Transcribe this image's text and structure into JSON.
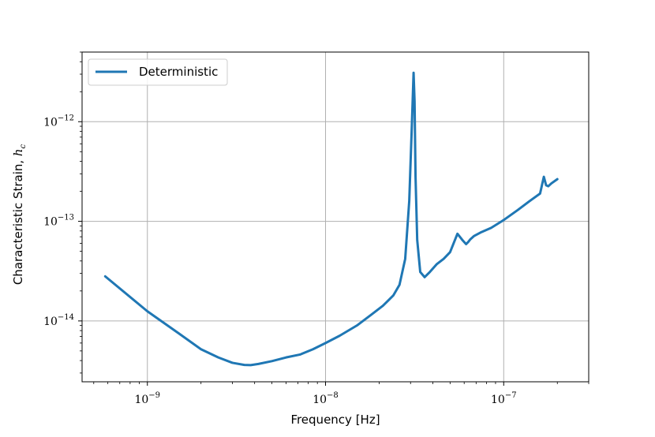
{
  "chart_data": {
    "type": "line",
    "title": "",
    "xlabel": "Frequency [Hz]",
    "ylabel_text": "Characteristic Strain, ",
    "ylabel_symbol": "h",
    "ylabel_subscript": "c",
    "x_scale": "log",
    "y_scale": "log",
    "xlim": [
      4.3e-10,
      3e-07
    ],
    "ylim": [
      2.45e-15,
      5e-12
    ],
    "grid": true,
    "legend_position": "top-left",
    "x_ticks": [
      {
        "base": "10",
        "exp": "−9",
        "value": 1e-09
      },
      {
        "base": "10",
        "exp": "−8",
        "value": 1e-08
      },
      {
        "base": "10",
        "exp": "−7",
        "value": 1e-07
      }
    ],
    "y_ticks": [
      {
        "base": "10",
        "exp": "−14",
        "value": 1e-14
      },
      {
        "base": "10",
        "exp": "−13",
        "value": 1e-13
      },
      {
        "base": "10",
        "exp": "−12",
        "value": 1e-12
      }
    ],
    "series": [
      {
        "name": "Deterministic",
        "color": "#1f77b4",
        "x": [
          5.8e-10,
          1e-09,
          1.5e-09,
          2e-09,
          2.5e-09,
          3e-09,
          3.5e-09,
          3.8e-09,
          4.2e-09,
          5e-09,
          6e-09,
          7.2e-09,
          8.5e-09,
          1e-08,
          1.2e-08,
          1.5e-08,
          1.8e-08,
          2.1e-08,
          2.4e-08,
          2.6e-08,
          2.8e-08,
          2.95e-08,
          3.05e-08,
          3.12e-08,
          3.16e-08,
          3.2e-08,
          3.27e-08,
          3.4e-08,
          3.6e-08,
          3.85e-08,
          4.2e-08,
          4.6e-08,
          5e-08,
          5.5e-08,
          5.9e-08,
          6.15e-08,
          6.32e-08,
          6.5e-08,
          6.8e-08,
          7.5e-08,
          8.5e-08,
          1e-07,
          1.2e-07,
          1.4e-07,
          1.6e-07,
          1.68e-07,
          1.73e-07,
          1.78e-07,
          1.85e-07,
          2e-07
        ],
        "y": [
          2.8e-14,
          1.25e-14,
          7.5e-15,
          5.2e-15,
          4.3e-15,
          3.8e-15,
          3.62e-15,
          3.6e-15,
          3.7e-15,
          3.95e-15,
          4.3e-15,
          4.6e-15,
          5.2e-15,
          6e-15,
          7.1e-15,
          9e-15,
          1.15e-14,
          1.42e-14,
          1.8e-14,
          2.3e-14,
          4.2e-14,
          1.6e-13,
          9e-13,
          3.1e-12,
          1.6e-12,
          2.8e-13,
          6.5e-14,
          3.1e-14,
          2.75e-14,
          3.1e-14,
          3.7e-14,
          4.2e-14,
          4.9e-14,
          7.5e-14,
          6.4e-14,
          5.9e-14,
          6.2e-14,
          6.6e-14,
          7.1e-14,
          7.8e-14,
          8.6e-14,
          1.03e-13,
          1.3e-13,
          1.6e-13,
          1.9e-13,
          2.8e-13,
          2.3e-13,
          2.25e-13,
          2.4e-13,
          2.65e-13
        ]
      }
    ]
  }
}
